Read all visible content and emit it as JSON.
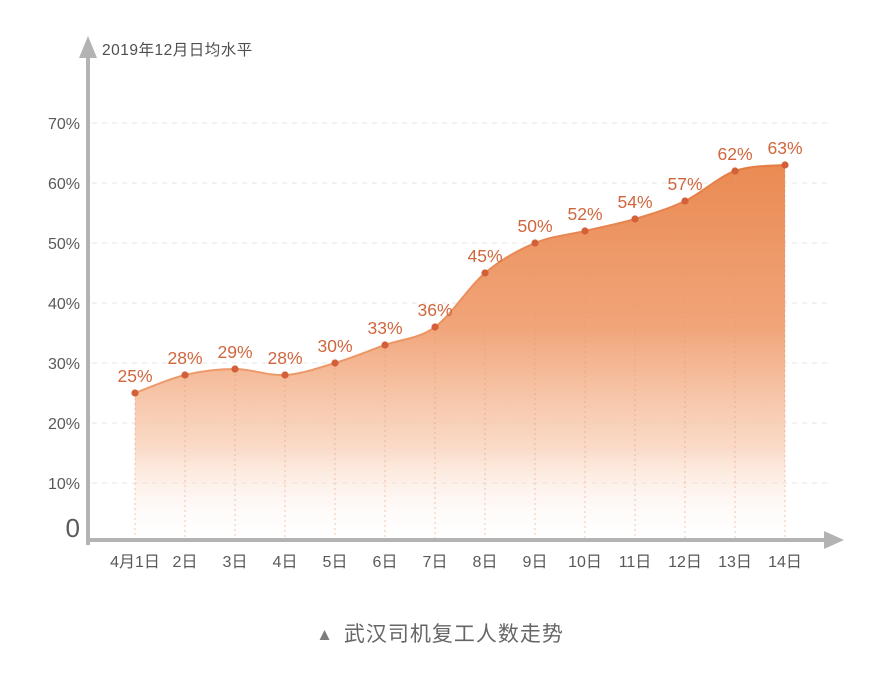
{
  "chart": {
    "caption": {
      "marker": "▲",
      "text": "武汉司机复工人数走势"
    },
    "colors": {
      "accent_dot": "#d4603a",
      "data_label": "#d0663e",
      "area_top": "#e9884f",
      "area_mid": "#f0a072",
      "area_low": "#f8cdb3",
      "edge_top": "#e57a40",
      "edge_bottom": "#f3b18a",
      "axis": "#b3b3b3",
      "grid": "#e9e9e9",
      "tick_text": "#595959",
      "guide_line": "#e89a6e"
    }
  },
  "chart_data": {
    "type": "area",
    "title": "武汉司机复工人数走势",
    "ylabel": "2019年12月日均水平",
    "categories": [
      "4月1日",
      "2日",
      "3日",
      "4日",
      "5日",
      "6日",
      "7日",
      "8日",
      "9日",
      "10日",
      "11日",
      "12日",
      "13日",
      "14日"
    ],
    "values": [
      25,
      28,
      29,
      28,
      30,
      33,
      36,
      45,
      50,
      52,
      54,
      57,
      62,
      63
    ],
    "data_labels": [
      "25%",
      "28%",
      "29%",
      "28%",
      "30%",
      "33%",
      "36%",
      "45%",
      "50%",
      "52%",
      "54%",
      "57%",
      "62%",
      "63%"
    ],
    "unit": "%",
    "ylim": [
      0,
      70
    ],
    "yticks": [
      {
        "value": 0,
        "label": "0"
      },
      {
        "value": 10,
        "label": "10%"
      },
      {
        "value": 20,
        "label": "20%"
      },
      {
        "value": 30,
        "label": "30%"
      },
      {
        "value": 40,
        "label": "40%"
      },
      {
        "value": 50,
        "label": "50%"
      },
      {
        "value": 60,
        "label": "60%"
      },
      {
        "value": 70,
        "label": "70%"
      }
    ],
    "grid": "horizontal-dashed",
    "legend": "none"
  }
}
